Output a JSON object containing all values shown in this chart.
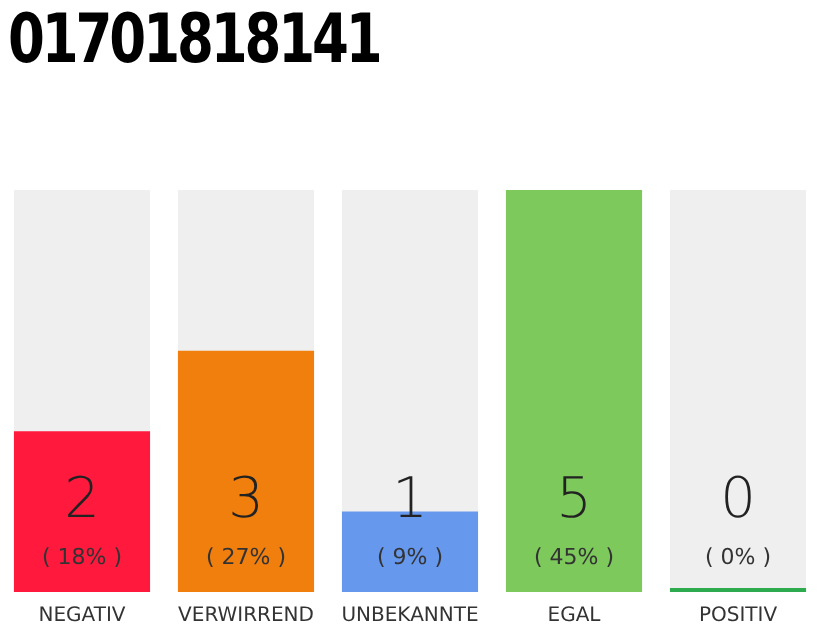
{
  "chart_data": {
    "type": "bar",
    "title": "01701818141",
    "categories": [
      "NEGATIV",
      "VERWIRREND",
      "UNBEKANNTE",
      "EGAL",
      "POSITIV"
    ],
    "values": [
      2,
      3,
      1,
      5,
      0
    ],
    "colors": [
      "#ff1a3d",
      "#f07f0e",
      "#6699ee",
      "#7dc95c",
      "#2eaa4f"
    ],
    "value_labels": [
      "2\n( 18% )",
      "3\n( 27% )",
      "1\n( 9% )",
      "5\n( 45% )",
      "0\n( 0% )"
    ],
    "tick_labels": "x",
    "grid": false,
    "legend": false
  }
}
